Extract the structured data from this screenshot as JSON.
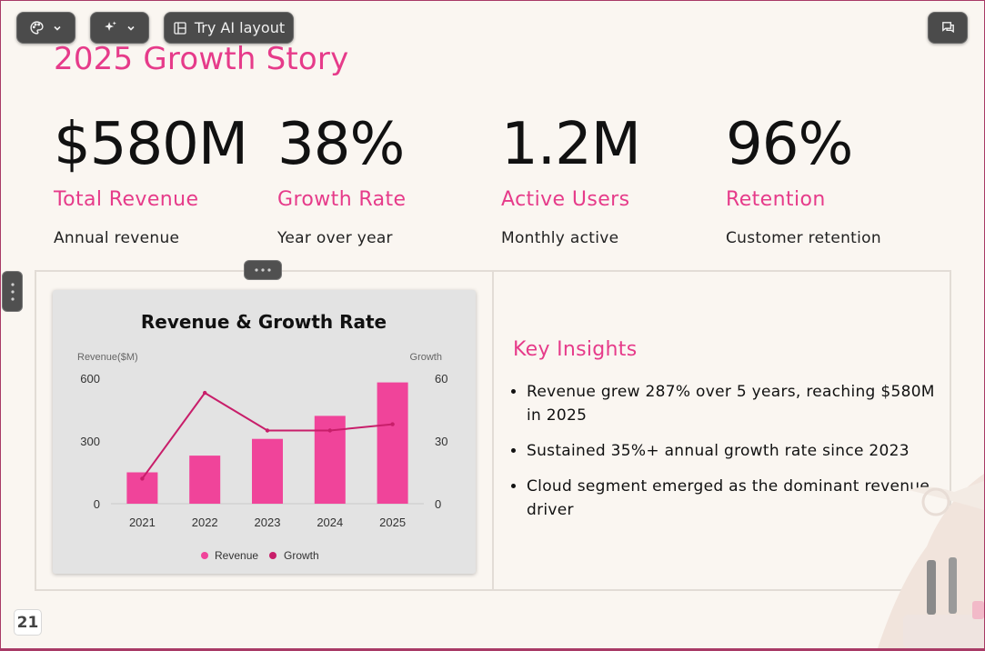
{
  "toolbar": {
    "theme_icon": "palette-icon",
    "ai_icon": "sparkles-icon",
    "layout_icon": "layout-icon",
    "try_ai_layout_label": "Try AI layout",
    "comments_icon": "comment-icon"
  },
  "slide": {
    "title": "2025 Growth Story",
    "stats": [
      {
        "value": "$580M",
        "label": "Total Revenue",
        "desc": "Annual revenue"
      },
      {
        "value": "38%",
        "label": "Growth Rate",
        "desc": "Year over year"
      },
      {
        "value": "1.2M",
        "label": "Active Users",
        "desc": "Monthly active"
      },
      {
        "value": "96%",
        "label": "Retention",
        "desc": "Customer retention"
      }
    ],
    "insights_title": "Key Insights",
    "insights": [
      "Revenue grew 287% over 5 years, reaching $580M in 2025",
      "Sustained 35%+ annual growth rate since 2023",
      "Cloud segment emerged as the dominant revenue driver"
    ],
    "page_number": "21"
  },
  "colors": {
    "accent": "#e63b8a",
    "revenue_bar": "#f0449a",
    "growth_line": "#c81e6a"
  },
  "chart_data": {
    "type": "bar",
    "title": "Revenue & Growth Rate",
    "categories": [
      "2021",
      "2022",
      "2023",
      "2024",
      "2025"
    ],
    "series": [
      {
        "name": "Revenue",
        "type": "bar",
        "axis": "left",
        "values": [
          150,
          230,
          310,
          420,
          580
        ]
      },
      {
        "name": "Growth",
        "type": "line",
        "axis": "right",
        "values": [
          12,
          53,
          35,
          35,
          38
        ]
      }
    ],
    "ylabel": "Revenue($M)",
    "y2label": "Growth",
    "ylim": [
      0,
      600
    ],
    "y2lim": [
      0,
      60
    ],
    "yticks": [
      "0",
      "300",
      "600"
    ],
    "y2ticks": [
      "0",
      "30",
      "60"
    ],
    "legend": "bottom"
  }
}
